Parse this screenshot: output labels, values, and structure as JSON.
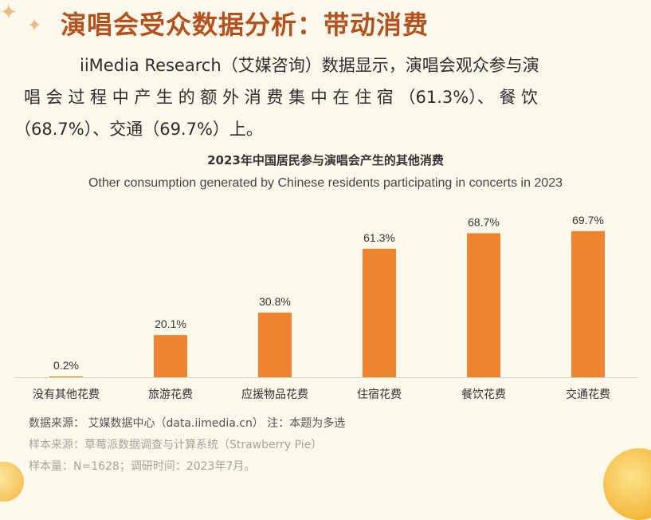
{
  "title": "演唱会受众数据分析：带动消费",
  "paragraph": {
    "line1": "iiMedia Research（艾媒咨询）数据显示，演唱会观众参与演",
    "line2": "唱 会 过 程 中 产 生 的 额 外 消 费 集 中 在 住 宿 （61.3%）、 餐 饮",
    "line3": "（68.7%）、交通（69.7%）上。"
  },
  "chart_data": {
    "type": "bar",
    "title": "2023年中国居民参与演唱会产生的其他消费",
    "subtitle": "Other consumption generated by Chinese residents participating in concerts in 2023",
    "categories": [
      "没有其他花费",
      "旅游花费",
      "应援物品花费",
      "住宿花费",
      "餐饮花费",
      "交通花费"
    ],
    "values": [
      0.2,
      20.1,
      30.8,
      61.3,
      68.7,
      69.7
    ],
    "value_labels": [
      "0.2%",
      "20.1%",
      "30.8%",
      "61.3%",
      "68.7%",
      "69.7%"
    ],
    "ylim": [
      0,
      70
    ],
    "bar_color": "#ee8330"
  },
  "footer": {
    "source": "数据来源： 艾媒数据中心（data.iimedia.cn）     注：本题为多选",
    "sample_source": "样本来源：草莓派数据调查与计算系统（Strawberry Pie）",
    "sample_size": "样本量：N=1628；调研时间：2023年7月。"
  }
}
